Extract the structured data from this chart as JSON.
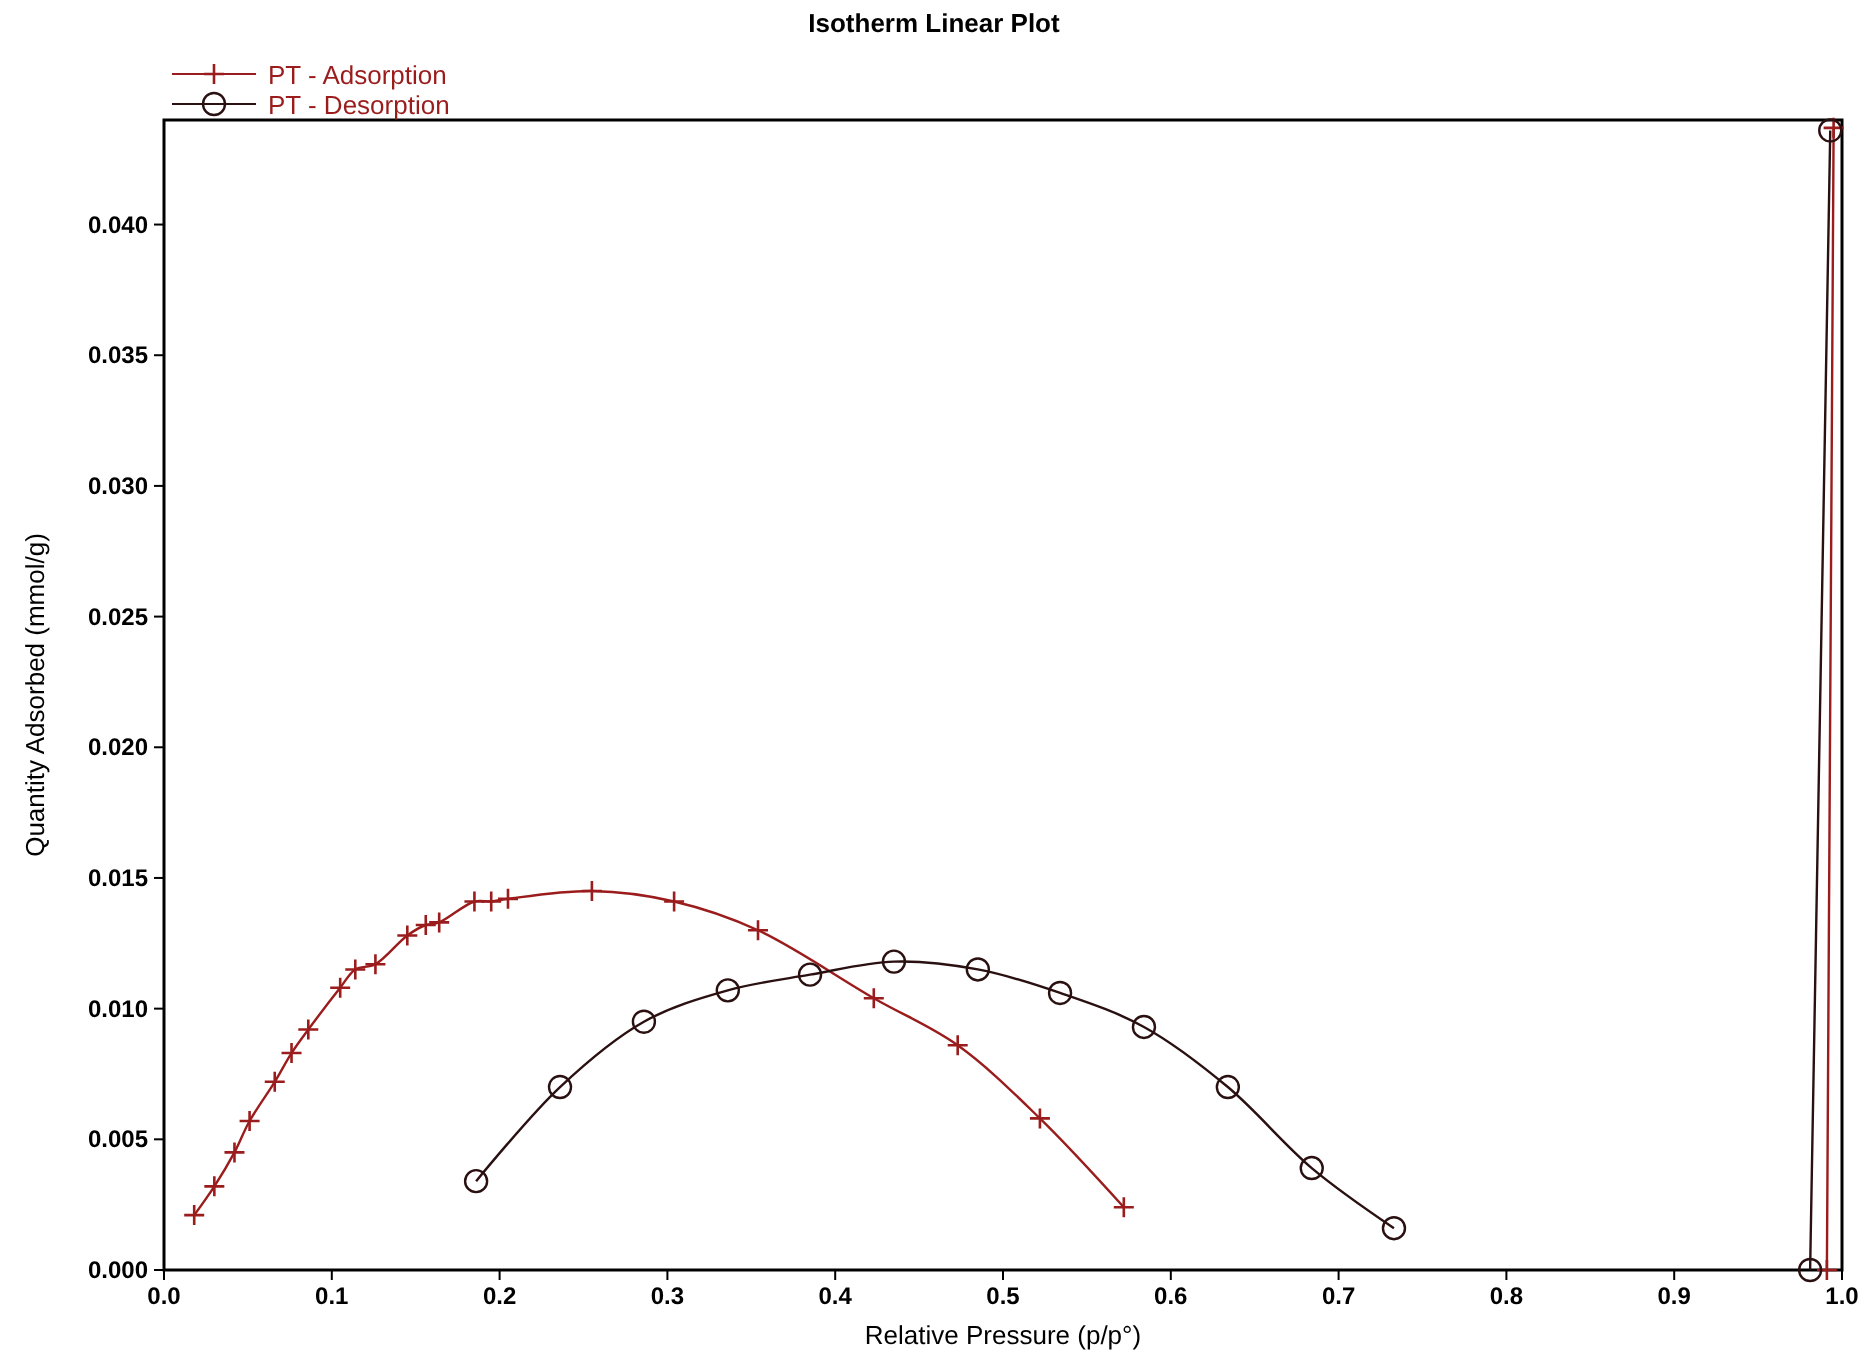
{
  "chart_data": {
    "type": "line",
    "title": "Isotherm Linear Plot",
    "xlabel": "Relative Pressure (p/p°)",
    "ylabel": "Quantity Adsorbed (mmol/g)",
    "xlim": [
      0,
      1
    ],
    "ylim": [
      0,
      0.044
    ],
    "xticks": [
      {
        "value": 0,
        "label": "0.0"
      },
      0.1,
      0.2,
      0.3,
      0.4,
      0.5,
      0.6,
      0.7,
      0.8,
      0.9,
      {
        "value": 1,
        "label": "1.0"
      }
    ],
    "yticks": [
      {
        "value": 0,
        "label": "0.000"
      },
      {
        "value": 0.005,
        "label": "0.005"
      },
      {
        "value": 0.01,
        "label": "0.010"
      },
      {
        "value": 0.015,
        "label": "0.015"
      },
      {
        "value": 0.02,
        "label": "0.020"
      },
      {
        "value": 0.025,
        "label": "0.025"
      },
      {
        "value": 0.03,
        "label": "0.030"
      },
      {
        "value": 0.035,
        "label": "0.035"
      },
      {
        "value": 0.04,
        "label": "0.040"
      }
    ],
    "grid": false,
    "legend": "top left",
    "line_style": "solid",
    "series": [
      {
        "name": "PT - Adsorption",
        "color": "#9b1c1c",
        "marker": "cross",
        "x": [
          0.018,
          0.03,
          0.042,
          0.051,
          0.066,
          0.076,
          0.086,
          0.105,
          0.114,
          0.126,
          0.145,
          0.156,
          0.164,
          0.185,
          0.195,
          0.205,
          0.255,
          0.304,
          0.354,
          0.423,
          0.473,
          0.522,
          0.572,
          0.98,
          0.991,
          0.995
        ],
        "values": [
          0.0021,
          0.0032,
          0.0045,
          0.0057,
          0.0072,
          0.0083,
          0.0092,
          0.0108,
          0.0115,
          0.0117,
          0.0128,
          0.0132,
          0.0133,
          0.0141,
          0.0141,
          0.0142,
          0.0145,
          0.0141,
          0.013,
          0.0104,
          0.0086,
          0.0058,
          0.0024,
          null,
          0,
          0.0437
        ]
      },
      {
        "name": "PT - Desorption",
        "color": "#2a1010",
        "marker": "circle",
        "x": [
          0.993,
          0.981,
          0.9,
          0.733,
          0.684,
          0.634,
          0.584,
          0.534,
          0.485,
          0.435,
          0.385,
          0.336,
          0.286,
          0.236,
          0.186
        ],
        "values": [
          0.0436,
          0,
          null,
          0.0016,
          0.0039,
          0.007,
          0.0093,
          0.0106,
          0.0115,
          0.0118,
          0.0113,
          0.0107,
          0.0095,
          0.007,
          0.0034
        ]
      }
    ]
  }
}
